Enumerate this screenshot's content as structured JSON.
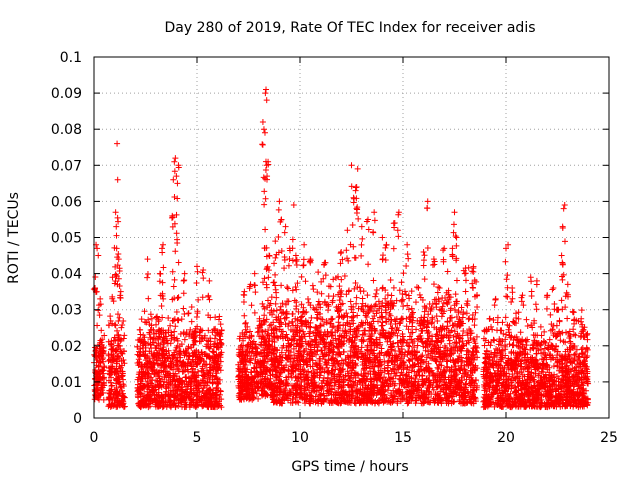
{
  "chart_data": {
    "type": "scatter",
    "title": "Day 280 of 2019, Rate Of TEC Index for receiver adis",
    "xlabel": "GPS time / hours",
    "ylabel": "ROTI / TECUs",
    "xlim": [
      0,
      25
    ],
    "ylim": [
      0,
      0.1
    ],
    "x_ticks": [
      "0",
      "5",
      "10",
      "15",
      "20",
      "25"
    ],
    "y_ticks": [
      "0",
      "0.01",
      "0.02",
      "0.03",
      "0.04",
      "0.05",
      "0.06",
      "0.07",
      "0.08",
      "0.09",
      "0.1"
    ],
    "x_tick_values": [
      0,
      5,
      10,
      15,
      20,
      25
    ],
    "y_tick_values": [
      0,
      0.01,
      0.02,
      0.03,
      0.04,
      0.05,
      0.06,
      0.07,
      0.08,
      0.09,
      0.1
    ],
    "grid": true,
    "marker": "+",
    "marker_color": "#ff0000",
    "segments": [
      {
        "x": [
          0.0,
          0.5
        ],
        "base": [
          0.005,
          0.028
        ],
        "notable": [
          [
            0.05,
            0.036
          ],
          [
            0.1,
            0.048
          ],
          [
            0.15,
            0.047
          ],
          [
            0.3,
            0.033
          ]
        ]
      },
      {
        "x": [
          0.7,
          1.5
        ],
        "base": [
          0.003,
          0.032
        ],
        "notable": [
          [
            0.9,
            0.039
          ],
          [
            1.05,
            0.057
          ],
          [
            1.08,
            0.053
          ],
          [
            1.1,
            0.047
          ],
          [
            1.12,
            0.076
          ],
          [
            1.15,
            0.066
          ],
          [
            1.2,
            0.044
          ],
          [
            1.3,
            0.035
          ]
        ]
      },
      {
        "x": [
          2.1,
          6.2
        ],
        "base": [
          0.003,
          0.032
        ],
        "notable": [
          [
            2.6,
            0.044
          ],
          [
            3.2,
            0.04
          ],
          [
            3.3,
            0.047
          ],
          [
            3.35,
            0.048
          ],
          [
            3.8,
            0.056
          ],
          [
            3.85,
            0.066
          ],
          [
            3.9,
            0.071
          ],
          [
            3.95,
            0.072
          ],
          [
            4.0,
            0.067
          ],
          [
            4.05,
            0.065
          ],
          [
            4.1,
            0.07
          ],
          [
            4.4,
            0.04
          ],
          [
            5.0,
            0.042
          ],
          [
            5.3,
            0.041
          ],
          [
            5.6,
            0.038
          ]
        ]
      },
      {
        "x": [
          7.0,
          8.0
        ],
        "base": [
          0.005,
          0.03
        ],
        "notable": [
          [
            7.3,
            0.035
          ],
          [
            7.6,
            0.037
          ],
          [
            7.8,
            0.04
          ]
        ]
      },
      {
        "x": [
          8.0,
          8.6
        ],
        "base": [
          0.006,
          0.035
        ],
        "notable": [
          [
            8.2,
            0.082
          ],
          [
            8.25,
            0.08
          ],
          [
            8.3,
            0.079
          ],
          [
            8.32,
            0.09
          ],
          [
            8.35,
            0.091
          ],
          [
            8.38,
            0.07
          ],
          [
            8.4,
            0.067
          ],
          [
            8.45,
            0.071
          ],
          [
            8.5,
            0.045
          ]
        ]
      },
      {
        "x": [
          8.6,
          18.6
        ],
        "base": [
          0.004,
          0.042
        ],
        "notable": [
          [
            8.8,
            0.049
          ],
          [
            9.0,
            0.06
          ],
          [
            9.1,
            0.055
          ],
          [
            9.3,
            0.053
          ],
          [
            9.5,
            0.047
          ],
          [
            9.7,
            0.059
          ],
          [
            9.8,
            0.045
          ],
          [
            10.2,
            0.048
          ],
          [
            10.5,
            0.044
          ],
          [
            11.2,
            0.043
          ],
          [
            12.0,
            0.046
          ],
          [
            12.3,
            0.052
          ],
          [
            12.5,
            0.07
          ],
          [
            12.6,
            0.061
          ],
          [
            12.7,
            0.063
          ],
          [
            12.75,
            0.064
          ],
          [
            12.8,
            0.069
          ],
          [
            13.0,
            0.053
          ],
          [
            13.3,
            0.055
          ],
          [
            13.6,
            0.057
          ],
          [
            14.0,
            0.05
          ],
          [
            14.2,
            0.048
          ],
          [
            14.6,
            0.054
          ],
          [
            14.8,
            0.057
          ],
          [
            15.2,
            0.048
          ],
          [
            16.0,
            0.046
          ],
          [
            16.2,
            0.06
          ],
          [
            16.5,
            0.044
          ],
          [
            17.0,
            0.047
          ],
          [
            17.4,
            0.047
          ],
          [
            17.5,
            0.057
          ],
          [
            17.6,
            0.05
          ],
          [
            18.0,
            0.04
          ],
          [
            18.4,
            0.036
          ]
        ]
      },
      {
        "x": [
          18.9,
          24.0
        ],
        "base": [
          0.003,
          0.03
        ],
        "notable": [
          [
            19.5,
            0.033
          ],
          [
            20.0,
            0.047
          ],
          [
            20.1,
            0.048
          ],
          [
            20.3,
            0.036
          ],
          [
            20.8,
            0.034
          ],
          [
            21.2,
            0.039
          ],
          [
            21.5,
            0.038
          ],
          [
            22.0,
            0.034
          ],
          [
            22.3,
            0.036
          ],
          [
            22.5,
            0.03
          ],
          [
            22.7,
            0.045
          ],
          [
            22.75,
            0.053
          ],
          [
            22.8,
            0.058
          ],
          [
            22.85,
            0.059
          ],
          [
            23.0,
            0.037
          ],
          [
            23.3,
            0.027
          ],
          [
            23.7,
            0.024
          ]
        ]
      }
    ]
  }
}
